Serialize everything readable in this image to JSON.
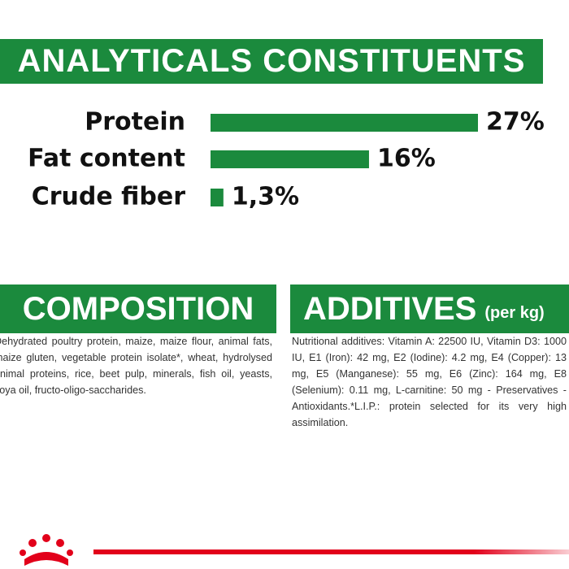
{
  "chart_data": {
    "type": "bar",
    "orientation": "horizontal",
    "title": "ANALYTICALS CONSTITUENTS",
    "categories": [
      "Protein",
      "Fat content",
      "Crude fiber"
    ],
    "values": [
      27,
      16,
      1.3
    ],
    "value_labels": [
      "27%",
      "16%",
      "1,3%"
    ],
    "color": "#1b8a3d"
  },
  "composition": {
    "title": "COMPOSITION",
    "text": "Dehydrated poultry protein, maize, maize flour, animal fats, maize gluten, vegetable protein isolate*, wheat, hydrolysed animal proteins, rice, beet pulp, minerals, fish oil, yeasts, soya oil, fructo-oligo-saccharides."
  },
  "additives": {
    "title": "ADDITIVES",
    "unit": "(per kg)",
    "text": "Nutritional additives: Vitamin A: 22500 IU, Vitamin D3: 1000 IU, E1 (Iron): 42 mg, E2 (Iodine): 4.2 mg, E4 (Copper): 13 mg, E5 (Manganese): 55 mg, E6 (Zinc): 164 mg, E8 (Selenium): 0.11 mg, L-carnitine: 50 mg - Preservatives - Antioxidants.*L.I.P.: protein selected for its very high assimilation."
  }
}
